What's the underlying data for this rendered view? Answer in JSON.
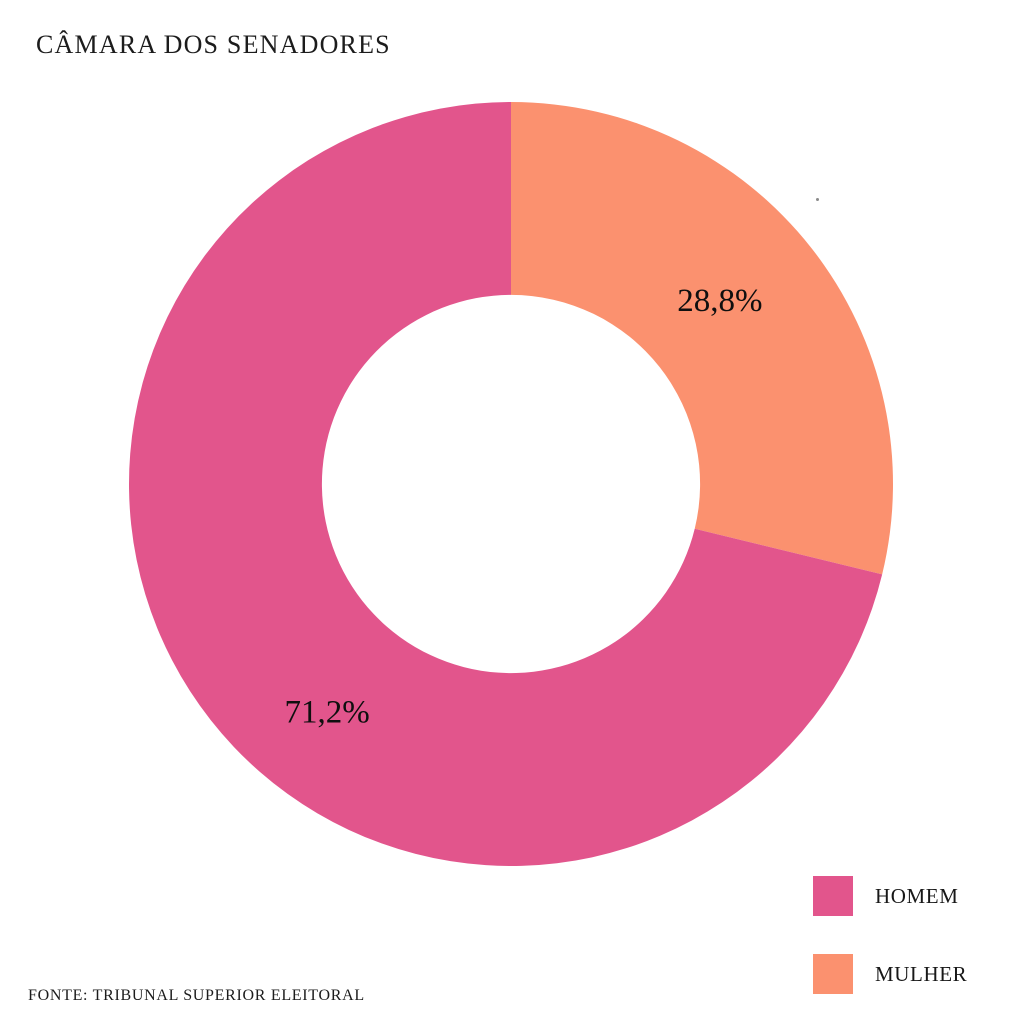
{
  "page": {
    "background": "#ffffff"
  },
  "header": {
    "title": "CÂMARA DOS SENADORES"
  },
  "footer": {
    "source": "FONTE: TRIBUNAL SUPERIOR ELEITORAL"
  },
  "colors": {
    "homem": "#E2558C",
    "mulher": "#FB916F",
    "label_text": "#0F0F0F",
    "title_text": "#1C1C1C"
  },
  "chart_data": {
    "type": "pie",
    "subtype": "donut",
    "title": "CÂMARA DOS SENADORES",
    "categories": [
      "HOMEM",
      "MULHER"
    ],
    "values": [
      71.2,
      28.8
    ],
    "slices": [
      {
        "name": "MULHER",
        "value": 28.8,
        "label": "28,8%",
        "color": "#FB916F"
      },
      {
        "name": "HOMEM",
        "value": 71.2,
        "label": "71,2%",
        "color": "#E2558C"
      }
    ],
    "start_angle_deg": 0,
    "direction": "clockwise",
    "inner_radius_ratio": 0.495,
    "grid": false,
    "legend_position": "bottom-right",
    "source": "FONTE: TRIBUNAL SUPERIOR ELEITORAL"
  },
  "legend": {
    "items": [
      {
        "label": "HOMEM",
        "color": "#E2558C"
      },
      {
        "label": "MULHER",
        "color": "#FB916F"
      }
    ]
  }
}
